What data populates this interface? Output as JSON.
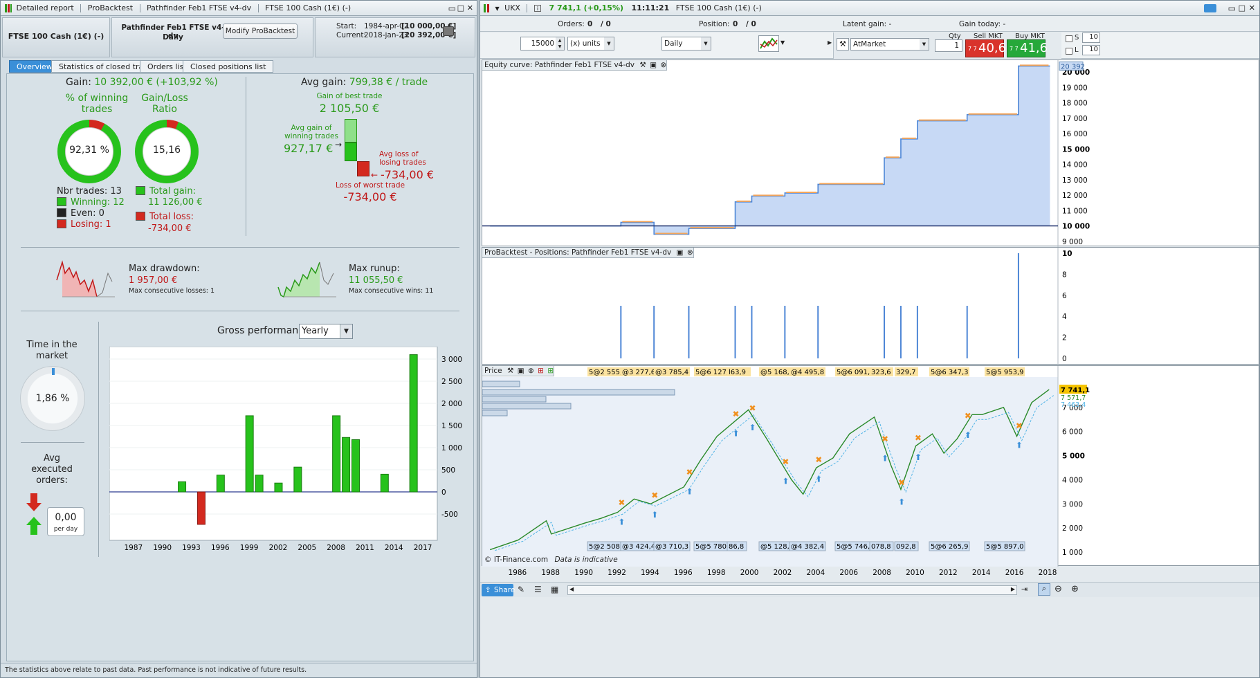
{
  "left_window": {
    "title_items": [
      "Detailed report",
      "ProBacktest",
      "Pathfinder Feb1 FTSE v4-dv",
      "FTSE 100 Cash (1€) (-)"
    ],
    "instrument": "FTSE 100 Cash (1€) (-)",
    "strategy_name": "Pathfinder Feb1 FTSE v4-dv",
    "strategy_period": "Daily",
    "modify_button": "Modify ProBacktest",
    "start_label": "Start:",
    "start_date": "1984-apr-02",
    "start_value": "[10 000,00 €]",
    "current_label": "Current:",
    "current_date": "2018-jan-23",
    "current_value": "[20 392,00 €]",
    "tabs": [
      "Overview",
      "Statistics of closed trades",
      "Orders list",
      "Closed positions list"
    ],
    "gain_label": "Gain:",
    "gain_value": "10 392,00 € (+103,92 %)",
    "pct_winning_label": "% of winning trades",
    "pct_winning_value": "92,31 %",
    "pct_winning": 92.31,
    "gl_ratio_label": "Gain/Loss Ratio",
    "gl_ratio_value": "15,16",
    "nbr_trades": "Nbr trades: 13",
    "winning": "Winning: 12",
    "even": "Even: 0",
    "losing": "Losing: 1",
    "total_gain_label": "Total gain:",
    "total_gain_value": "11 126,00 €",
    "total_loss_label": "Total loss:",
    "total_loss_value": "-734,00 €",
    "avg_gain_label": "Avg gain:",
    "avg_gain_value": "799,38 € / trade",
    "best_trade_label": "Gain of best trade",
    "best_trade_value": "2 105,50 €",
    "avg_win_label": "Avg gain of winning trades",
    "avg_win_value": "927,17 €",
    "avg_loss_label": "Avg loss of losing trades",
    "avg_loss_value": "-734,00 €",
    "worst_trade_label": "Loss of worst trade",
    "worst_trade_value": "-734,00 €",
    "max_drawdown_label": "Max drawdown:",
    "max_drawdown_value": "1 957,00 €",
    "max_consec_losses": "Max consecutive losses: 1",
    "max_runup_label": "Max runup:",
    "max_runup_value": "11 055,50 €",
    "max_consec_wins": "Max consecutive wins: 11",
    "time_in_market_label": "Time in the market",
    "time_in_market_value": "1,86 %",
    "time_in_market": 1.86,
    "avg_orders_label": "Avg executed orders:",
    "avg_orders_value": "0,00",
    "avg_orders_unit": "per day",
    "gross_perf_label": "Gross performance",
    "gross_perf_period": "Yearly",
    "footer": "The statistics above relate to past data. Past performance is not indicative of future results."
  },
  "chart_data": [
    {
      "type": "bar",
      "title": "Gross performance",
      "x_ticks": [
        "1987",
        "1990",
        "1993",
        "1996",
        "1999",
        "2002",
        "2005",
        "2008",
        "2011",
        "2014",
        "2017"
      ],
      "y_ticks": [
        "3 000",
        "2 500",
        "2 000",
        "1 500",
        "1 000",
        "500",
        "0",
        "-500"
      ],
      "ylim": [
        -750,
        3000
      ],
      "x": [
        1992,
        1994,
        1996,
        1999,
        2000,
        2002,
        2004,
        2008,
        2009,
        2010,
        2013,
        2016
      ],
      "values": [
        230,
        -734,
        380,
        1720,
        380,
        200,
        560,
        1720,
        1230,
        1180,
        400,
        3100
      ]
    },
    {
      "type": "area",
      "title": "Equity curve: Pathfinder Feb1 FTSE v4-dv",
      "y_ticks": [
        "20 000",
        "19 000",
        "18 000",
        "17 000",
        "16 000",
        "15 000",
        "14 000",
        "13 000",
        "12 000",
        "11 000",
        "10 000",
        "9 000"
      ],
      "ylim": [
        8900,
        20500
      ],
      "last_value_label": "20 392",
      "baseline": 10000,
      "steps": [
        [
          1984.3,
          10000
        ],
        [
          1992.2,
          10230
        ],
        [
          1994.2,
          9460
        ],
        [
          1996.3,
          9840
        ],
        [
          1999.1,
          11560
        ],
        [
          2000.1,
          11940
        ],
        [
          2002.1,
          12140
        ],
        [
          2004.1,
          12700
        ],
        [
          2008.1,
          14420
        ],
        [
          2009.1,
          15650
        ],
        [
          2010.1,
          16830
        ],
        [
          2013.1,
          17230
        ],
        [
          2016.2,
          20392
        ],
        [
          2018.1,
          20392
        ]
      ]
    },
    {
      "type": "bar",
      "title": "ProBacktest - Positions: Pathfinder Feb1 FTSE v4-dv",
      "y_ticks": [
        "10",
        "8",
        "6",
        "4",
        "2",
        "0"
      ],
      "ylim": [
        0,
        10
      ],
      "x": [
        1992.2,
        1994.2,
        1996.3,
        1999.1,
        2000.1,
        2002.1,
        2004.1,
        2008.1,
        2009.1,
        2010.1,
        2013.1,
        2016.2
      ],
      "values": [
        5,
        5,
        5,
        5,
        5,
        5,
        5,
        5,
        5,
        5,
        5,
        10
      ]
    },
    {
      "type": "line",
      "title": "Price",
      "y_ticks": [
        "7 000",
        "6 000",
        "5 000",
        "4 000",
        "3 000",
        "2 000",
        "1 000"
      ],
      "x_ticks": [
        "1986",
        "1988",
        "1990",
        "1992",
        "1994",
        "1996",
        "1998",
        "2000",
        "2002",
        "2004",
        "2006",
        "2008",
        "2010",
        "2012",
        "2014",
        "2016",
        "2018"
      ],
      "ylim": [
        800,
        8200
      ],
      "last_price_label": "7 741,1",
      "other_price_labels": [
        "7 571,7",
        "7 463,4"
      ],
      "points": [
        [
          1984.3,
          1100
        ],
        [
          1986,
          1500
        ],
        [
          1987.7,
          2300
        ],
        [
          1988,
          1750
        ],
        [
          1990,
          2200
        ],
        [
          1991,
          2400
        ],
        [
          1992,
          2650
        ],
        [
          1993,
          3200
        ],
        [
          1994,
          3000
        ],
        [
          1996,
          3700
        ],
        [
          1997,
          4800
        ],
        [
          1998,
          5800
        ],
        [
          1999.9,
          6900
        ],
        [
          2001,
          5700
        ],
        [
          2002.5,
          4000
        ],
        [
          2003.2,
          3400
        ],
        [
          2004,
          4500
        ],
        [
          2005,
          4900
        ],
        [
          2006,
          5900
        ],
        [
          2007.5,
          6600
        ],
        [
          2008.5,
          4600
        ],
        [
          2009.1,
          3600
        ],
        [
          2010,
          5400
        ],
        [
          2011,
          5900
        ],
        [
          2011.7,
          5100
        ],
        [
          2012.5,
          5700
        ],
        [
          2013.4,
          6700
        ],
        [
          2014,
          6700
        ],
        [
          2015.3,
          7000
        ],
        [
          2016.1,
          5800
        ],
        [
          2017,
          7200
        ],
        [
          2018.05,
          7741
        ]
      ],
      "entry_tags": [
        "5@2 555,1",
        "@3 277,6",
        "@3 785,4",
        "5@6 127,5",
        "l63,9",
        "@5 168,0",
        "@4 495,8",
        "5@6 091,4",
        "323,6",
        "329,7",
        "5@6 347,3",
        "5@5 953,9"
      ],
      "exit_tags": [
        "5@2 508,4",
        "@3 424,4",
        "@3 710,3",
        "5@5 780,6",
        "86,8",
        "@5 128,0",
        "@4 382,4",
        "5@5 746,6",
        "078,8",
        "092,8",
        "5@6 265,9",
        "5@5 897,0"
      ],
      "footer": "© IT-Finance.com",
      "data_note": "Data is indicative"
    }
  ],
  "right_window": {
    "symbol": "UKX",
    "price": "7 741,1 (+0,15%)",
    "time": "11:11:21",
    "instrument": "FTSE 100 Cash (1€) (-)",
    "orders_label": "Orders:",
    "orders_value_a": "0",
    "orders_value_b": "/ 0",
    "position_label": "Position:",
    "position_value_a": "0",
    "position_value_b": "/ 0",
    "latent_gain": "Latent gain: -",
    "gain_today": "Gain today: -",
    "units_value": "15000",
    "units_mode": "(x) units",
    "timeframe": "Daily",
    "order_type": "AtMarket",
    "qty_label": "Qty",
    "qty_value": "1",
    "sell_label": "Sell MKT",
    "sell_prefix": "7 7",
    "sell_price": "40,6",
    "buy_label": "Buy MKT",
    "buy_prefix": "7 7",
    "buy_price": "41,6",
    "s_label": "S",
    "s_value": "10",
    "l_label": "L",
    "l_value": "10",
    "share_label": "Share"
  },
  "colors": {
    "win_green": "#27c21c",
    "loss_red": "#d3291f",
    "equity_fill": "#c7d9f5",
    "equity_line": "#4d86d6",
    "step_orange": "#f3a55a",
    "sell_red": "#d9332b",
    "buy_green": "#26a83a"
  }
}
